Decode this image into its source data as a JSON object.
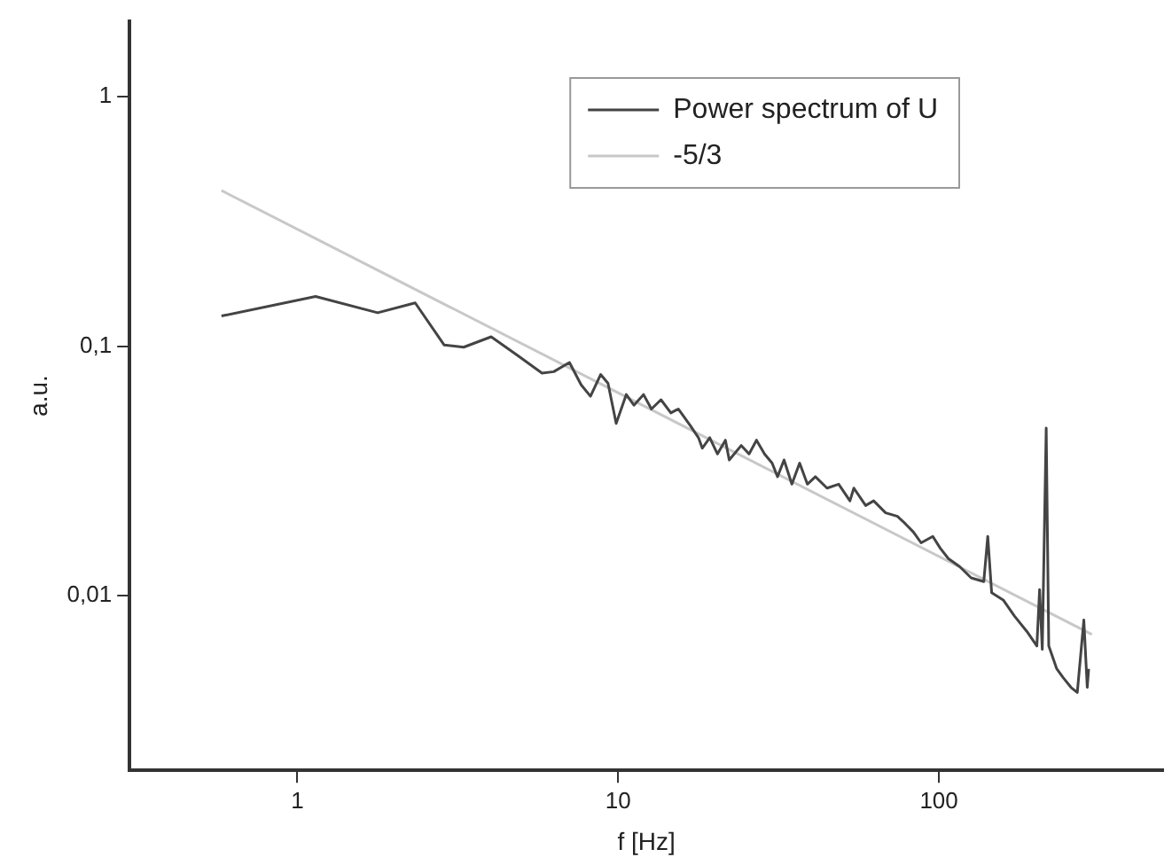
{
  "chart_data": {
    "type": "line",
    "xlabel": "f [Hz]",
    "ylabel": "a.u.",
    "log": "xy",
    "grid": false,
    "legend": "top right",
    "marker": "none",
    "xlim": [
      0.3,
      500
    ],
    "xticks": [
      1,
      10,
      100
    ],
    "ylim": [
      0.002,
      2
    ],
    "yticks": [
      {
        "value": 0.01,
        "label": "0,01"
      },
      {
        "value": 0.1,
        "label": "0,1"
      },
      1
    ],
    "series": [
      {
        "name": "Power spectrum of U",
        "color": "#444444",
        "x": [
          0.58,
          1.14,
          1.78,
          2.33,
          2.87,
          3.3,
          4.02,
          4.9,
          5.79,
          6.3,
          7.05,
          7.67,
          8.2,
          8.82,
          9.3,
          9.86,
          10.6,
          11.2,
          12.0,
          12.7,
          13.6,
          14.6,
          15.4,
          16.8,
          17.8,
          18.3,
          19.3,
          20.4,
          21.6,
          22.2,
          24.2,
          25.6,
          27.0,
          28.6,
          30.2,
          31.4,
          32.9,
          34.8,
          36.8,
          38.9,
          41.2,
          44.8,
          48.7,
          52.8,
          54.3,
          59.1,
          62.6,
          68.2,
          74.3,
          78.7,
          83.3,
          88.0,
          95.7,
          101,
          107,
          116,
          126,
          138,
          142,
          146,
          159,
          172,
          188,
          202,
          206,
          210,
          216,
          220,
          233,
          244,
          258,
          270,
          283,
          290,
          293
        ],
        "values": [
          0.132,
          0.158,
          0.136,
          0.149,
          0.101,
          0.099,
          0.109,
          0.091,
          0.078,
          0.079,
          0.086,
          0.07,
          0.063,
          0.077,
          0.071,
          0.049,
          0.064,
          0.058,
          0.064,
          0.056,
          0.061,
          0.054,
          0.056,
          0.048,
          0.043,
          0.039,
          0.043,
          0.037,
          0.042,
          0.035,
          0.04,
          0.037,
          0.042,
          0.037,
          0.034,
          0.03,
          0.035,
          0.028,
          0.034,
          0.028,
          0.03,
          0.027,
          0.028,
          0.024,
          0.027,
          0.023,
          0.024,
          0.0215,
          0.0208,
          0.0194,
          0.018,
          0.0163,
          0.0173,
          0.0155,
          0.0141,
          0.0131,
          0.0118,
          0.0114,
          0.0173,
          0.0103,
          0.0096,
          0.0083,
          0.0072,
          0.0063,
          0.0106,
          0.0061,
          0.047,
          0.0063,
          0.0051,
          0.0047,
          0.0043,
          0.0041,
          0.008,
          0.0043,
          0.0051
        ]
      },
      {
        "name": "-5/3",
        "color": "#c8c8c8",
        "x": [
          0.58,
          300
        ],
        "values": [
          0.42,
          0.007
        ]
      }
    ]
  }
}
